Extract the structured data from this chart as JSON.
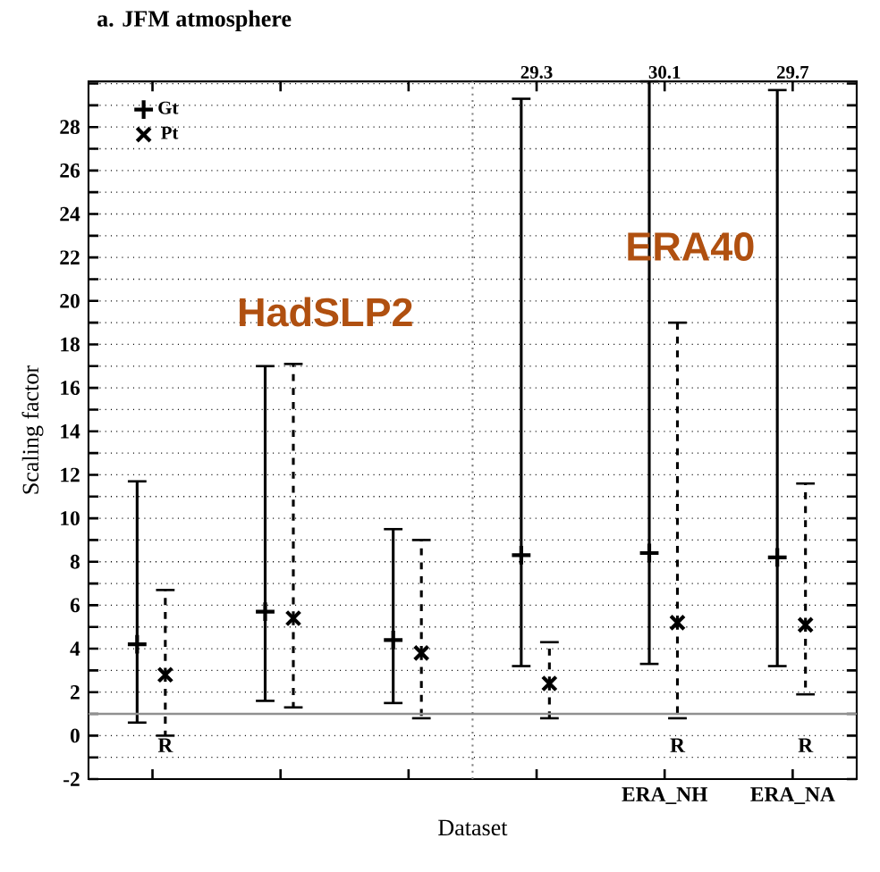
{
  "chart_data": {
    "type": "scatter",
    "title": "a. JFM atmosphere",
    "xlabel": "Dataset",
    "ylabel": "Scaling factor",
    "categories": [
      null,
      null,
      null,
      null,
      "ERA_NH",
      "ERA_NA"
    ],
    "ylim": [
      -2,
      30.1
    ],
    "yticks": [
      -2,
      {
        "value": -1,
        "label": null
      },
      0,
      {
        "value": 1,
        "label": null
      },
      2,
      {
        "value": 3,
        "label": null
      },
      4,
      {
        "value": 5,
        "label": null
      },
      6,
      {
        "value": 7,
        "label": null
      },
      8,
      {
        "value": 9,
        "label": null
      },
      10,
      {
        "value": 11,
        "label": null
      },
      12,
      {
        "value": 13,
        "label": null
      },
      14,
      {
        "value": 15,
        "label": null
      },
      16,
      {
        "value": 17,
        "label": null
      },
      18,
      {
        "value": 19,
        "label": null
      },
      20,
      {
        "value": 21,
        "label": null
      },
      22,
      {
        "value": 23,
        "label": null
      },
      24,
      {
        "value": 25,
        "label": null
      },
      26,
      {
        "value": 27,
        "label": null
      },
      28,
      {
        "value": 29,
        "label": null
      },
      {
        "value": 30,
        "label": null
      }
    ],
    "grid": "y",
    "legend": "top left",
    "series": [
      {
        "name": "Gt",
        "color": "#000000",
        "marker": "cross",
        "line_style": "solid",
        "values": [
          4.2,
          5.7,
          4.4,
          8.3,
          8.4,
          8.2
        ],
        "errors": [
          [
            0.6,
            11.7
          ],
          [
            1.6,
            17.0
          ],
          [
            1.5,
            9.5
          ],
          [
            3.2,
            29.3
          ],
          [
            3.3,
            30.1
          ],
          [
            3.2,
            29.7
          ]
        ]
      },
      {
        "name": "Pt",
        "color": "#000000",
        "marker": "cross",
        "line_style": "dashed",
        "values": [
          2.8,
          5.4,
          3.8,
          2.4,
          5.2,
          5.1
        ],
        "errors": [
          [
            0.0,
            6.7
          ],
          [
            1.3,
            17.1
          ],
          [
            0.8,
            9.0
          ],
          [
            0.8,
            4.3
          ],
          [
            0.8,
            19.0
          ],
          [
            1.9,
            11.6
          ]
        ]
      }
    ],
    "ref_lines": [
      {
        "axis": "y",
        "value": 1,
        "color": "#909090",
        "line_style": "solid"
      }
    ],
    "annotations": [
      "29.3",
      "30.1",
      "29.7",
      "R",
      "R",
      "R",
      "HadSLP2",
      "ERA40"
    ]
  }
}
